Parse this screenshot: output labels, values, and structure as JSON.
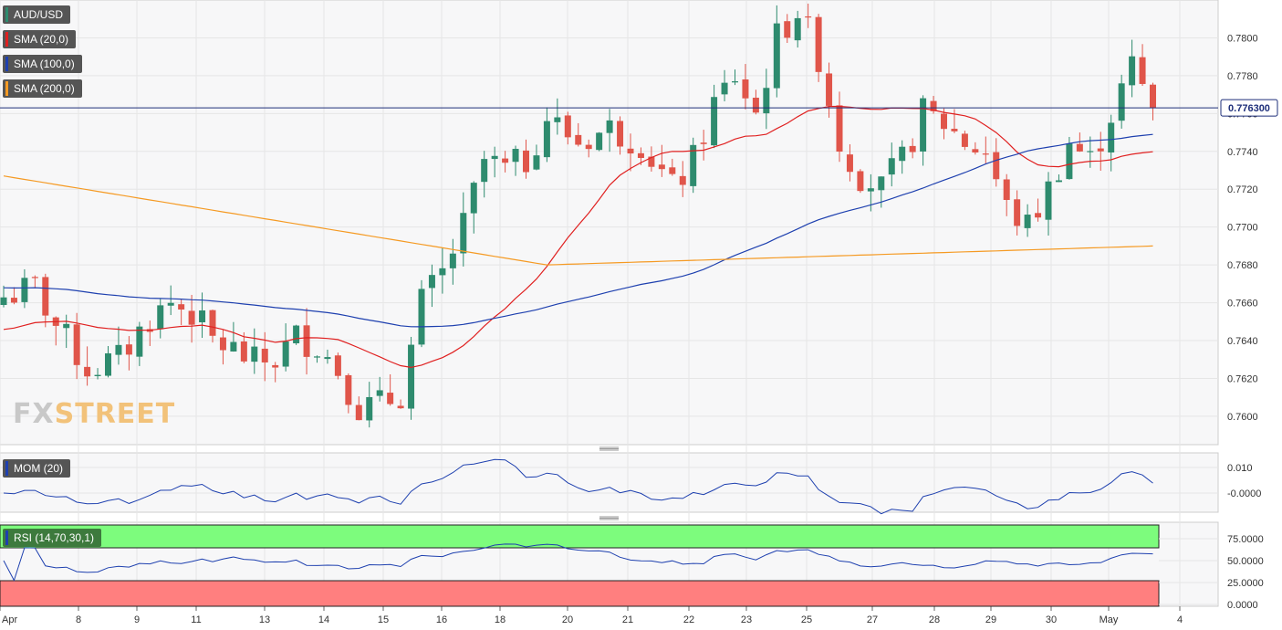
{
  "symbol": "AUD/USD",
  "current_price_label": "0.776300",
  "indicators": {
    "sma20": {
      "label": "SMA (20,0)",
      "color": "#e02020"
    },
    "sma100": {
      "label": "SMA (100,0)",
      "color": "#1e40af"
    },
    "sma200": {
      "label": "SMA (200,0)",
      "color": "#f59a23"
    },
    "mom": {
      "label": "MOM (20)",
      "color": "#1e40af"
    },
    "rsi": {
      "label": "RSI (14,70,30,1)",
      "color": "#1e40af",
      "overbought_color": "#7dfc7d",
      "oversold_color": "#ff7f7f"
    }
  },
  "logo": {
    "part1": "FX",
    "part2": "STREET"
  },
  "colors": {
    "up": "#2e8b6e",
    "down": "#e0554a",
    "grid": "#e6e6e6",
    "price_line": "#1e2f7a"
  },
  "chart_data": [
    {
      "type": "candlestick",
      "title": "",
      "ylim": [
        0.7585,
        0.782
      ],
      "y_ticks": [
        "0.7600",
        "0.7620",
        "0.7640",
        "0.7660",
        "0.7680",
        "0.7700",
        "0.7720",
        "0.7740",
        "0.7760",
        "0.7780",
        "0.7800"
      ],
      "x_ticks": [
        "Apr",
        "8",
        "9",
        "11",
        "13",
        "14",
        "15",
        "16",
        "18",
        "20",
        "21",
        "22",
        "23",
        "25",
        "27",
        "28",
        "29",
        "30",
        "May",
        "4"
      ],
      "grid": true,
      "current_price": 0.7763
    },
    {
      "type": "line",
      "name": "MOM (20)",
      "y_ticks": [
        "0.010",
        "-0.0000"
      ],
      "grid": true
    },
    {
      "type": "line",
      "name": "RSI (14,70,30,1)",
      "ylim": [
        0,
        100
      ],
      "y_ticks": [
        "75.0000",
        "50.0000",
        "25.0000",
        "0.0000"
      ],
      "overbought": 70,
      "oversold": 30,
      "grid": true
    }
  ]
}
